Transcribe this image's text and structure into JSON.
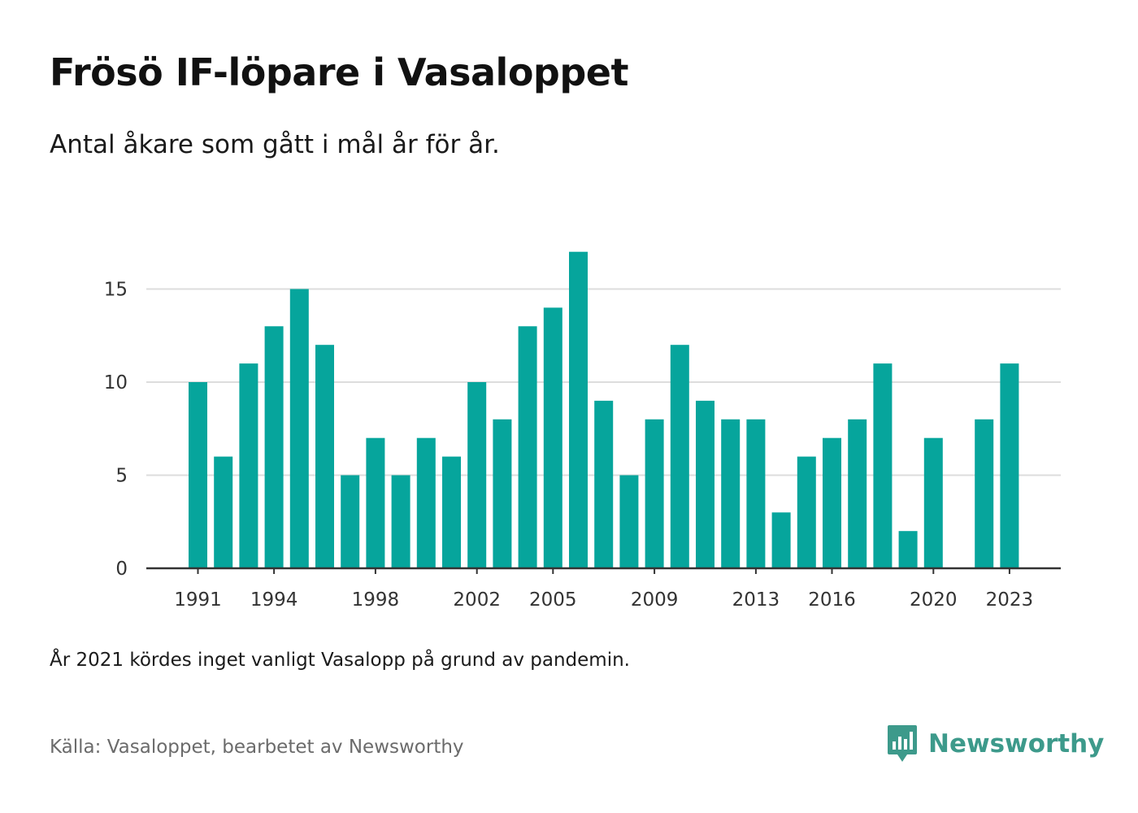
{
  "header": {
    "title": "Frösö IF-löpare i Vasaloppet",
    "subtitle": "Antal åkare som gått i mål år för år."
  },
  "footer": {
    "note": "År 2021 kördes inget vanligt Vasalopp på grund av pandemin.",
    "source": "Källa: Vasaloppet, bearbetet av Newsworthy",
    "brand": "Newsworthy"
  },
  "colors": {
    "bar": "#06a59c",
    "grid": "#dddddd",
    "axis": "#333333",
    "brand": "#3d9a8b"
  },
  "icons": {
    "logo": "newsworthy-bar-chart-badge-icon"
  },
  "chart_data": {
    "type": "bar",
    "title": "Frösö IF-löpare i Vasaloppet",
    "subtitle": "Antal åkare som gått i mål år för år.",
    "xlabel": "",
    "ylabel": "",
    "ylim": [
      0,
      17
    ],
    "yticks": [
      0,
      5,
      10,
      15
    ],
    "grid": true,
    "legend": "none",
    "categories": [
      1991,
      1992,
      1993,
      1994,
      1995,
      1996,
      1997,
      1998,
      1999,
      2000,
      2001,
      2002,
      2003,
      2004,
      2005,
      2006,
      2007,
      2008,
      2009,
      2010,
      2011,
      2012,
      2013,
      2014,
      2015,
      2016,
      2017,
      2018,
      2019,
      2020,
      2021,
      2022,
      2023
    ],
    "values": [
      10,
      6,
      11,
      13,
      15,
      12,
      5,
      7,
      5,
      7,
      6,
      10,
      8,
      13,
      14,
      17,
      9,
      5,
      8,
      12,
      9,
      8,
      8,
      3,
      6,
      7,
      8,
      11,
      2,
      7,
      null,
      8,
      11
    ],
    "xtick_labels": [
      1991,
      1994,
      1998,
      2002,
      2005,
      2009,
      2013,
      2016,
      2020,
      2023
    ]
  }
}
